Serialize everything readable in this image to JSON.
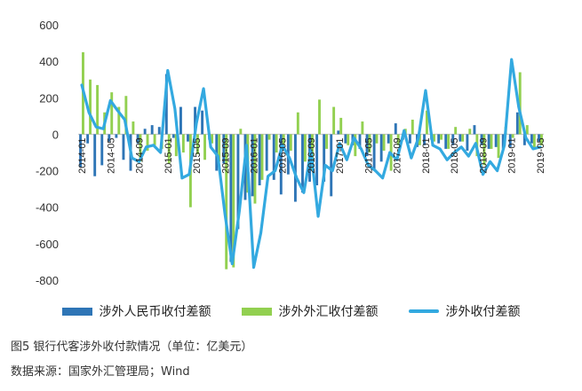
{
  "chart_data": {
    "type": "bar+line",
    "y_ticks": [
      600,
      400,
      200,
      0,
      -200,
      -400,
      -600,
      -800
    ],
    "ylim": [
      -850,
      620
    ],
    "x_tick_labels": [
      "2014-01",
      "2014-05",
      "2014-09",
      "2015-01",
      "2015-05",
      "2015-09",
      "2016-01",
      "2016-05",
      "2016-09",
      "2017-01",
      "2017-05",
      "2017-09",
      "2018-01",
      "2018-05",
      "2018-09",
      "2019-01",
      "2019-05"
    ],
    "months": [
      "2014-01",
      "2014-02",
      "2014-03",
      "2014-04",
      "2014-05",
      "2014-06",
      "2014-07",
      "2014-08",
      "2014-09",
      "2014-10",
      "2014-11",
      "2014-12",
      "2015-01",
      "2015-02",
      "2015-03",
      "2015-04",
      "2015-05",
      "2015-06",
      "2015-07",
      "2015-08",
      "2015-09",
      "2015-10",
      "2015-11",
      "2015-12",
      "2016-01",
      "2016-02",
      "2016-03",
      "2016-04",
      "2016-05",
      "2016-06",
      "2016-07",
      "2016-08",
      "2016-09",
      "2016-10",
      "2016-11",
      "2016-12",
      "2017-01",
      "2017-02",
      "2017-03",
      "2017-04",
      "2017-05",
      "2017-06",
      "2017-07",
      "2017-08",
      "2017-09",
      "2017-10",
      "2017-11",
      "2017-12",
      "2018-01",
      "2018-02",
      "2018-03",
      "2018-04",
      "2018-05",
      "2018-06",
      "2018-07",
      "2018-08",
      "2018-09",
      "2018-10",
      "2018-11",
      "2018-12",
      "2019-01",
      "2019-02",
      "2019-03",
      "2019-04",
      "2019-05"
    ],
    "series": [
      {
        "name": "涉外人民币收付差额",
        "kind": "bar",
        "color": "#2e75b6",
        "values": [
          -180,
          -50,
          -230,
          -170,
          -40,
          -20,
          -140,
          -200,
          -50,
          30,
          50,
          40,
          330,
          -20,
          150,
          -40,
          150,
          130,
          -30,
          -200,
          -160,
          -700,
          -520,
          -360,
          -340,
          -280,
          -200,
          -250,
          -330,
          -220,
          -370,
          -320,
          -260,
          -280,
          -260,
          -340,
          20,
          -50,
          -60,
          -80,
          -120,
          -200,
          -150,
          -50,
          60,
          -30,
          -50,
          -70,
          -60,
          -30,
          -50,
          -80,
          -60,
          -40,
          -90,
          50,
          -60,
          -80,
          -70,
          -80,
          -70,
          120,
          -60,
          -50,
          -40
        ]
      },
      {
        "name": "涉外外汇收付差额",
        "kind": "bar",
        "color": "#92d050",
        "values": [
          450,
          300,
          270,
          120,
          230,
          150,
          210,
          70,
          -150,
          -90,
          -60,
          -80,
          -160,
          -120,
          -100,
          -400,
          -110,
          -140,
          -50,
          -150,
          -740,
          -730,
          30,
          -320,
          -380,
          -250,
          -30,
          -100,
          -60,
          -90,
          120,
          -150,
          -200,
          190,
          -80,
          150,
          90,
          -60,
          -120,
          70,
          -100,
          -50,
          -90,
          -200,
          -60,
          30,
          80,
          -60,
          130,
          -40,
          -30,
          -80,
          40,
          -40,
          30,
          -120,
          -170,
          -80,
          -130,
          40,
          -20,
          340,
          50,
          -80,
          -60
        ]
      },
      {
        "name": "涉外收付差额",
        "kind": "line",
        "color": "#33a9e0",
        "values": [
          270,
          120,
          40,
          30,
          185,
          130,
          80,
          -130,
          -150,
          -70,
          -60,
          -100,
          350,
          140,
          -240,
          -220,
          60,
          250,
          -70,
          -120,
          -440,
          -710,
          -420,
          -60,
          -730,
          -540,
          -230,
          -200,
          -60,
          -130,
          -240,
          -320,
          -90,
          -450,
          -170,
          -200,
          -50,
          -140,
          -20,
          -80,
          -170,
          -200,
          -240,
          -100,
          -140,
          20,
          -130,
          -20,
          240,
          -60,
          -80,
          -140,
          -100,
          -70,
          -120,
          -50,
          -220,
          -150,
          -200,
          -60,
          410,
          150,
          -20,
          -80,
          -70
        ]
      }
    ]
  },
  "caption": {
    "title": "图5  银行代客涉外收付款情况（单位：亿美元）",
    "source": "数据来源：国家外汇管理局；Wind"
  }
}
